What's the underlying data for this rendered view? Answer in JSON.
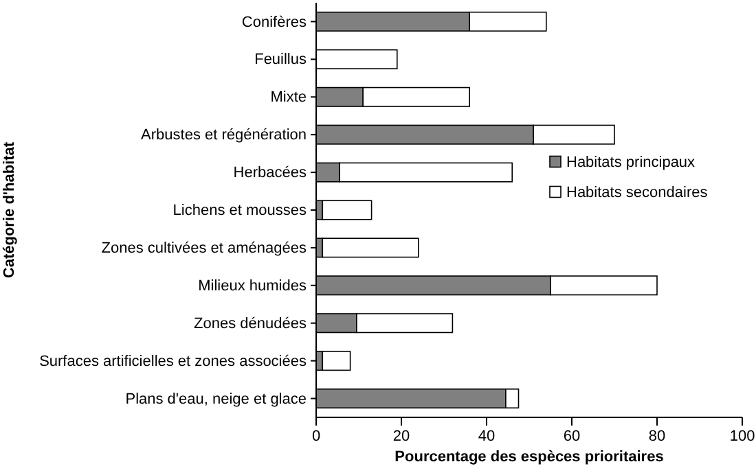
{
  "chart_data": {
    "type": "bar",
    "orientation": "horizontal",
    "stacked": true,
    "xlabel": "Pourcentage des espèces prioritaires",
    "ylabel": "Catégorie d'habitat",
    "categories": [
      "Conifères",
      "Feuillus",
      "Mixte",
      "Arbustes et régénération",
      "Herbacées",
      "Lichens et mousses",
      "Zones cultivées et aménagées",
      "Milieux humides",
      "Zones dénudées",
      "Surfaces artificielles et zones associées",
      "Plans d'eau, neige et glace"
    ],
    "series": [
      {
        "name": "Habitats principaux",
        "color": "#808080",
        "values": [
          36,
          0,
          11,
          51,
          5.5,
          1.5,
          1.5,
          55,
          9.5,
          1.5,
          44.5
        ]
      },
      {
        "name": "Habitats secondaires",
        "color": "#ffffff",
        "values": [
          18,
          19,
          25,
          19,
          40.5,
          11.5,
          22.5,
          25,
          22.5,
          6.5,
          3
        ]
      }
    ],
    "xlim": [
      0,
      100
    ],
    "xticks": [
      0,
      20,
      40,
      60,
      80,
      100
    ],
    "grid": false,
    "legend": "right"
  }
}
